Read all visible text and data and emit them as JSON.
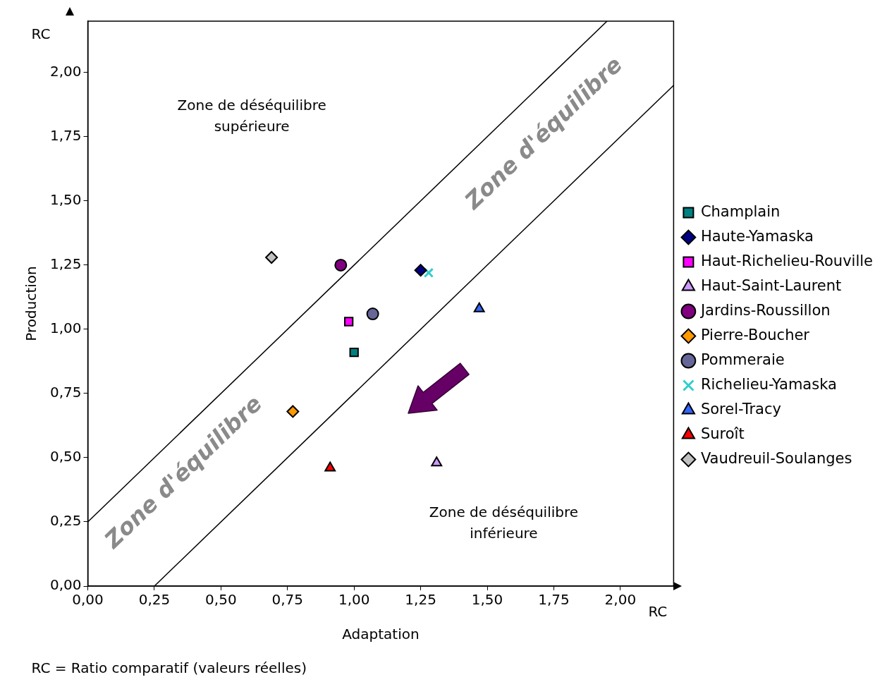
{
  "chart_data": {
    "type": "scatter",
    "xlabel": "Adaptation",
    "ylabel": "Production",
    "xlim": [
      0,
      2.2
    ],
    "ylim": [
      0,
      2.2
    ],
    "xticks": [
      {
        "value": 0,
        "label": "0,00"
      },
      {
        "value": 0.25,
        "label": "0,25"
      },
      {
        "value": 0.5,
        "label": "0,50"
      },
      {
        "value": 0.75,
        "label": "0,75"
      },
      {
        "value": 1,
        "label": "1,00"
      },
      {
        "value": 1.25,
        "label": "1,25"
      },
      {
        "value": 1.5,
        "label": "1,50"
      },
      {
        "value": 1.75,
        "label": "1,75"
      },
      {
        "value": 2,
        "label": "2,00"
      }
    ],
    "yticks": [
      {
        "value": 0,
        "label": "0,00"
      },
      {
        "value": 0.25,
        "label": "0,25"
      },
      {
        "value": 0.5,
        "label": "0,50"
      },
      {
        "value": 0.75,
        "label": "0,75"
      },
      {
        "value": 1,
        "label": "1,00"
      },
      {
        "value": 1.25,
        "label": "1,25"
      },
      {
        "value": 1.5,
        "label": "1,50"
      },
      {
        "value": 1.75,
        "label": "1,75"
      },
      {
        "value": 2,
        "label": "2,00"
      }
    ],
    "grid": false,
    "legend": "right",
    "series": [
      {
        "name": "Champlain",
        "color": "#008080",
        "marker": "square",
        "x": [
          1.0
        ],
        "values": [
          0.91
        ]
      },
      {
        "name": "Haute-Yamaska",
        "color": "#000080",
        "marker": "diamond",
        "x": [
          1.25
        ],
        "values": [
          1.23
        ]
      },
      {
        "name": "Haut-Richelieu-Rouville",
        "color": "#ff00ff",
        "marker": "square",
        "x": [
          0.98
        ],
        "values": [
          1.03
        ]
      },
      {
        "name": "Haut-Saint-Laurent",
        "color": "#cc99ff",
        "marker": "triangle",
        "x": [
          1.31
        ],
        "values": [
          0.48
        ]
      },
      {
        "name": "Jardins-Roussillon",
        "color": "#800080",
        "marker": "circle",
        "x": [
          0.95
        ],
        "values": [
          1.25
        ]
      },
      {
        "name": "Pierre-Boucher",
        "color": "#ff9900",
        "marker": "diamond",
        "x": [
          0.77
        ],
        "values": [
          0.68
        ]
      },
      {
        "name": "Pommeraie",
        "color": "#666699",
        "marker": "circle",
        "x": [
          1.07
        ],
        "values": [
          1.06
        ]
      },
      {
        "name": "Richelieu-Yamaska",
        "color": "#33cccc",
        "marker": "cross",
        "x": [
          1.28
        ],
        "values": [
          1.22
        ]
      },
      {
        "name": "Sorel-Tracy",
        "color": "#3366ff",
        "marker": "triangle",
        "x": [
          1.47
        ],
        "values": [
          1.08
        ]
      },
      {
        "name": "Suroît",
        "color": "#ff0000",
        "marker": "triangle",
        "x": [
          0.91
        ],
        "values": [
          0.46
        ]
      },
      {
        "name": "Vaudreuil-Soulanges",
        "color": "#c0c0c0",
        "marker": "diamond",
        "x": [
          0.69
        ],
        "values": [
          1.28
        ]
      },
      {
        "type": "line",
        "color": "#000000",
        "marker": "none",
        "x": [
          0,
          1.95
        ],
        "values": [
          0.25,
          2.2
        ]
      },
      {
        "type": "line",
        "color": "#000000",
        "marker": "none",
        "x": [
          0.25,
          2.2
        ],
        "values": [
          0,
          1.95
        ]
      }
    ],
    "annotations": [
      "RC",
      "RC",
      "RC = Ratio comparatif (valeurs réelles)",
      "Zone de déséquilibre supérieure",
      "Zone de déséquilibre inférieure",
      "Zone d'équilibre",
      "Zone d'équilibre"
    ]
  }
}
